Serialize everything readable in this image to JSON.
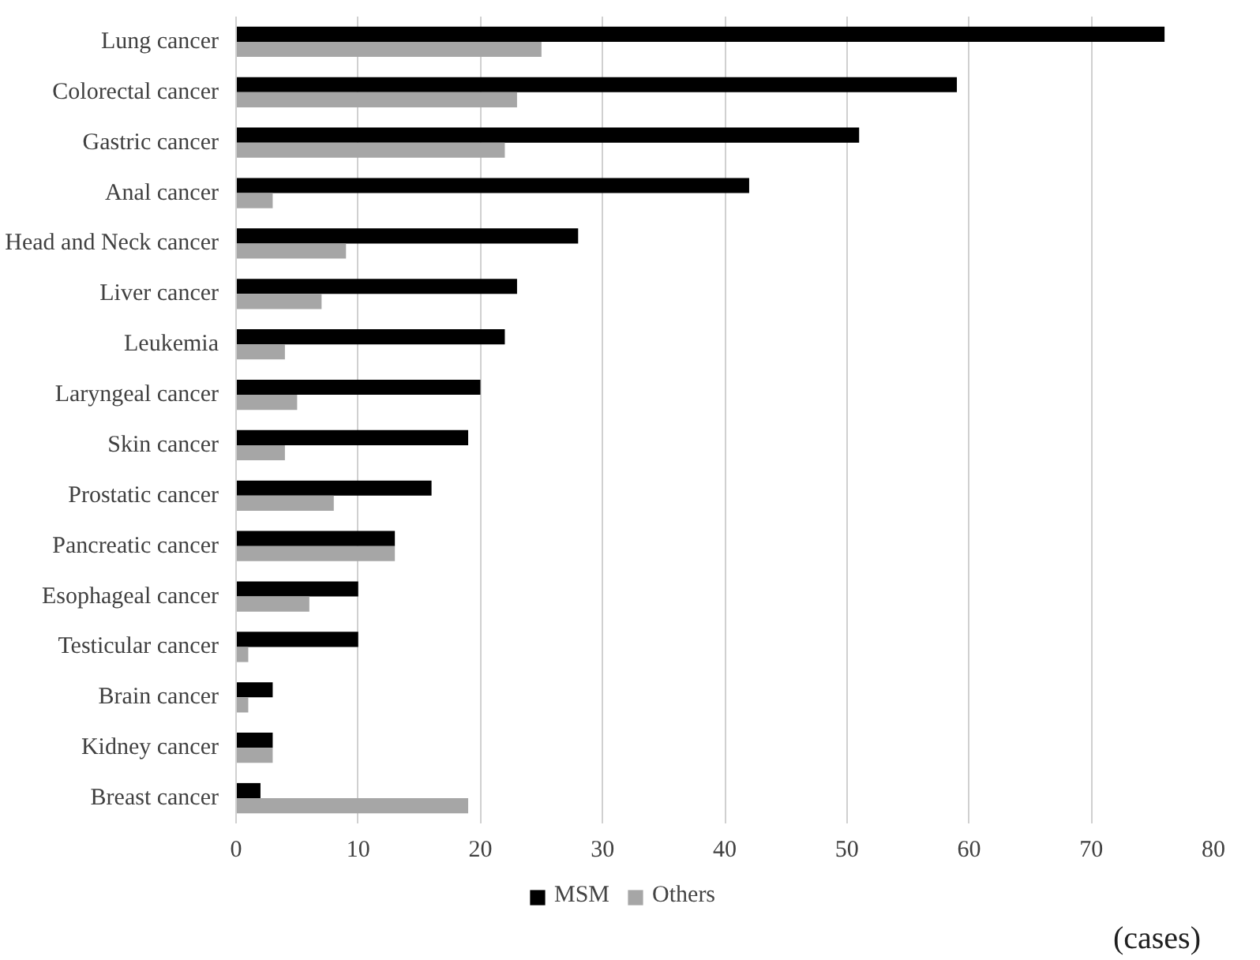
{
  "chart_data": {
    "type": "bar",
    "orientation": "horizontal",
    "xlabel": "(cases)",
    "categories": [
      "Lung cancer",
      "Colorectal cancer",
      "Gastric cancer",
      "Anal cancer",
      "Head and Neck cancer",
      "Liver cancer",
      "Leukemia",
      "Laryngeal cancer",
      "Skin cancer",
      "Prostatic cancer",
      "Pancreatic cancer",
      "Esophageal cancer",
      "Testicular cancer",
      "Brain cancer",
      "Kidney cancer",
      "Breast cancer"
    ],
    "series": [
      {
        "name": "MSM",
        "color": "#000000",
        "values": [
          76,
          59,
          51,
          42,
          28,
          23,
          22,
          20,
          19,
          16,
          13,
          10,
          10,
          3,
          3,
          2
        ]
      },
      {
        "name": "Others",
        "color": "#a6a6a6",
        "values": [
          25,
          23,
          22,
          3,
          9,
          7,
          4,
          5,
          4,
          8,
          13,
          6,
          1,
          1,
          3,
          19
        ]
      }
    ],
    "xlim": [
      0,
      80
    ],
    "xticks": [
      0,
      10,
      20,
      30,
      40,
      50,
      60,
      70,
      80
    ],
    "grid": "x",
    "legend": "bottom"
  }
}
